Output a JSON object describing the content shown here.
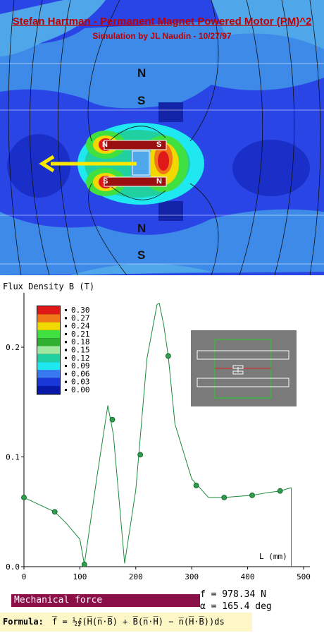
{
  "simulation": {
    "title": "Stefan Hartman - Permanent Magnet Powered Motor (PM)^2",
    "subtitle": "Simulation by JL Naudin - 10/27/97",
    "pole_labels_top": [
      "N",
      "S"
    ],
    "pole_labels_bottom": [
      "N",
      "S"
    ],
    "upper_magnet": {
      "left": "N",
      "right": "S"
    },
    "lower_magnet": {
      "left": "S",
      "right": "N"
    },
    "right_magnet_upper": "S",
    "right_magnet_lower": "N"
  },
  "colors": {
    "background_field": "#2a45e6",
    "title": "#c00000",
    "arrow": "#ffe800",
    "curve": "#1a8a3a",
    "point": "#2e9e4e",
    "mechanical_bar": "#8b1048",
    "formula_bg": "#fdf7c8",
    "inset_bg": "#7a7a7a"
  },
  "chart_data": {
    "type": "line",
    "title": "Flux Density B (T)",
    "ylabel": "Flux Density B (T)",
    "xlabel": "L (mm)",
    "xlim": [
      0,
      500
    ],
    "ylim": [
      0,
      0.25
    ],
    "x_ticks": [
      "0",
      "100",
      "200",
      "300",
      "400",
      "500"
    ],
    "y_ticks": [
      "0.0",
      "0.1",
      "0.2"
    ],
    "grid": false,
    "series": [
      {
        "x": [
          0,
          55,
          75,
          100,
          108,
          130,
          150,
          160,
          180,
          200,
          220,
          238,
          242,
          250,
          258,
          270,
          300,
          330,
          358,
          380,
          408,
          430,
          458,
          478
        ],
        "y": [
          0.063,
          0.05,
          0.04,
          0.025,
          0.002,
          0.08,
          0.147,
          0.12,
          0.003,
          0.07,
          0.19,
          0.239,
          0.24,
          0.22,
          0.192,
          0.13,
          0.08,
          0.063,
          0.063,
          0.064,
          0.065,
          0.067,
          0.069,
          0.072
        ]
      }
    ],
    "markers": {
      "x": [
        0,
        55,
        108,
        158,
        208,
        258,
        308,
        358,
        408,
        458
      ],
      "y": [
        0.063,
        0.05,
        0.002,
        0.134,
        0.102,
        0.192,
        0.074,
        0.063,
        0.065,
        0.069
      ]
    },
    "legend": {
      "placement": "top-left",
      "entries": [
        {
          "label": "0.30",
          "color": "#e01818"
        },
        {
          "label": "0.27",
          "color": "#f07818"
        },
        {
          "label": "0.24",
          "color": "#f0d800"
        },
        {
          "label": "0.21",
          "color": "#40e040"
        },
        {
          "label": "0.18",
          "color": "#30b030"
        },
        {
          "label": "0.15",
          "color": "#a0e8a0"
        },
        {
          "label": "0.12",
          "color": "#20d0a0"
        },
        {
          "label": "0.09",
          "color": "#20e8f0"
        },
        {
          "label": "0.06",
          "color": "#3878f0"
        },
        {
          "label": "0.03",
          "color": "#1838d8"
        },
        {
          "label": "0.00",
          "color": "#0818a8"
        }
      ]
    }
  },
  "result": {
    "mechanical_label": "Mechanical force",
    "force": "f = 978.34 N",
    "angle": "α = 165.4 deg",
    "formula_label": "Formula:",
    "formula": "f̅ = ½∮(H̅(n̅·B̅) + B̅(n̅·H̅) − n̅(H̅·B̅))ds"
  }
}
